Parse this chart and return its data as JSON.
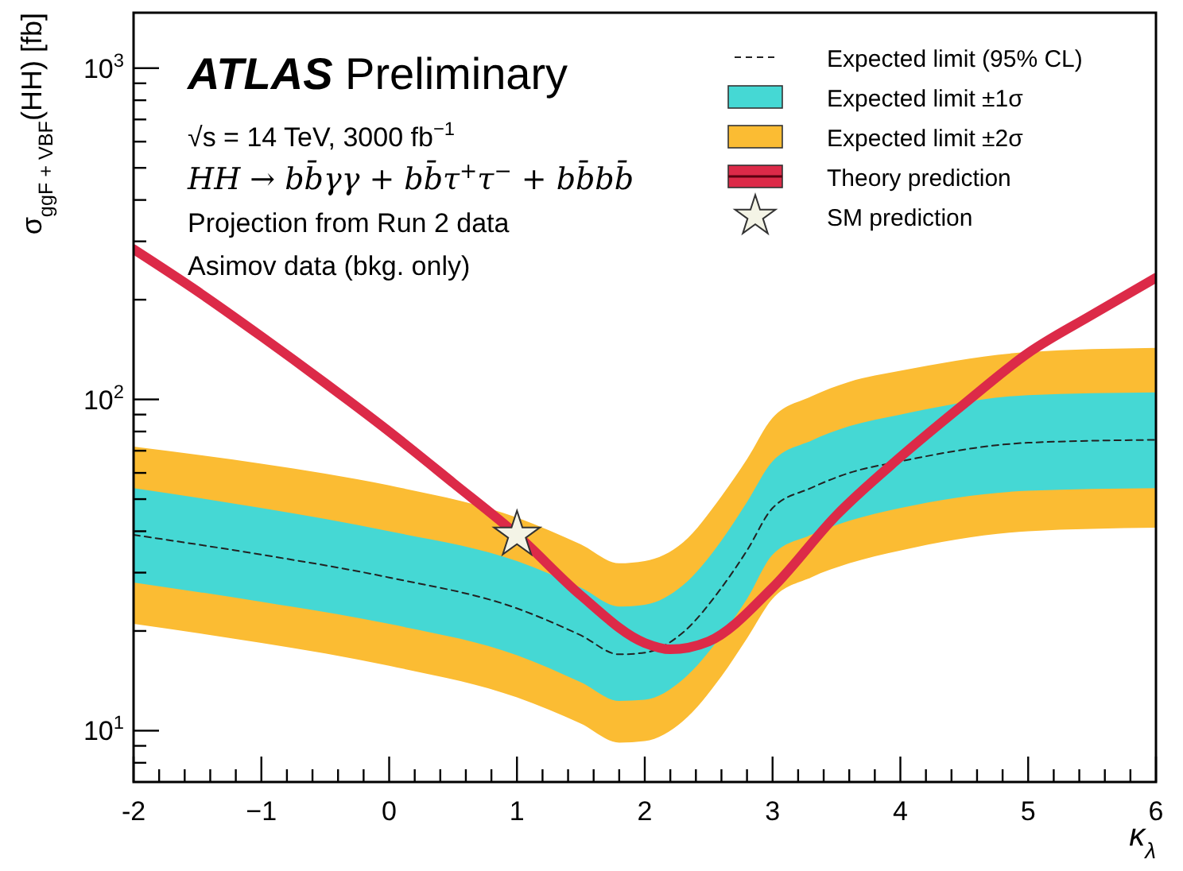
{
  "chart_data": {
    "type": "line",
    "title": "ATLAS Preliminary",
    "xlabel": "κ$_{λ}$",
    "ylabel": "σ$_{ggF + VBF}$(HH) [fb]",
    "annotations": [
      "√s = 14 TeV, 3000 fb$^{−1}$",
      "HH → bb̄γγ + bb̄τ$^{+}$τ$^{−}$ + bb̄bb̄",
      "Projection from Run 2 data",
      "Asimov data (bkg. only)"
    ],
    "x": [
      -2,
      -1,
      0,
      1,
      1.5,
      1.8,
      2,
      2.3,
      2.6,
      2.8,
      3,
      3.3,
      3.6,
      4,
      5,
      6
    ],
    "series": [
      {
        "name": "Expected limit (95% CL)",
        "color": "#222222",
        "line_style": "dashed",
        "values": [
          39,
          34,
          29,
          23.4,
          19.4,
          17,
          17.2,
          19.8,
          27,
          35,
          47,
          54,
          60,
          65,
          74,
          75.5
        ]
      },
      {
        "name": "Expected limit ±1σ",
        "color": "#45d8d4",
        "values": [
          null,
          null,
          null,
          null,
          null,
          null,
          null,
          null,
          null,
          null,
          null,
          null,
          null,
          null,
          null,
          null
        ],
        "lower": [
          28,
          24.5,
          21,
          16.9,
          14,
          12.3,
          12.4,
          14.3,
          19.4,
          25,
          34,
          39,
          43,
          47,
          53,
          54
        ],
        "upper": [
          54,
          47,
          40,
          32.5,
          27,
          23.7,
          24,
          27.5,
          37.5,
          49,
          65,
          75,
          83,
          90,
          103,
          105
        ]
      },
      {
        "name": "Expected limit ±2σ",
        "color": "#fbbc33",
        "values": [
          null,
          null,
          null,
          null,
          null,
          null,
          null,
          null,
          null,
          null,
          null,
          null,
          null,
          null,
          null,
          null
        ],
        "lower": [
          21,
          18.4,
          15.7,
          12.6,
          10.5,
          9.2,
          9.3,
          10.7,
          14.6,
          19,
          25,
          29,
          32,
          35,
          40,
          41
        ],
        "upper": [
          72,
          64,
          55,
          44,
          36.5,
          32,
          32.5,
          37,
          51,
          66,
          88,
          102,
          113,
          122,
          139,
          143
        ]
      },
      {
        "name": "Theory prediction",
        "color": "#dc2a48",
        "line_style": "solid",
        "x": [
          -2,
          -1.5,
          -1,
          -0.5,
          0,
          0.5,
          1,
          1.5,
          2,
          2.2,
          2.5,
          3,
          3.5,
          4,
          4.5,
          5,
          5.5,
          6
        ],
        "values": [
          284,
          212,
          155,
          112,
          80,
          56,
          39,
          25.6,
          18.4,
          17.6,
          18.6,
          27,
          44.7,
          67,
          97,
          138,
          180,
          233
        ]
      },
      {
        "name": "SM prediction",
        "type": "scatter",
        "color": "#f4f4e6",
        "marker": "star",
        "x": [
          1
        ],
        "values": [
          39
        ]
      }
    ],
    "xlim": [
      -2,
      6
    ],
    "xticks": [
      -2,
      {
        "value": -1.8,
        "label": null
      },
      {
        "value": -1.6,
        "label": null
      },
      {
        "value": -1.4,
        "label": null
      },
      {
        "value": -1.2,
        "label": null
      },
      {
        "value": -1,
        "label": "−1"
      },
      {
        "value": -0.8,
        "label": null
      },
      {
        "value": -0.6,
        "label": null
      },
      {
        "value": -0.4,
        "label": null
      },
      {
        "value": -0.2,
        "label": null
      },
      0,
      {
        "value": 0.2,
        "label": null
      },
      {
        "value": 0.4,
        "label": null
      },
      {
        "value": 0.6,
        "label": null
      },
      {
        "value": 0.8,
        "label": null
      },
      1,
      {
        "value": 1.2,
        "label": null
      },
      {
        "value": 1.4,
        "label": null
      },
      {
        "value": 1.6,
        "label": null
      },
      {
        "value": 1.8,
        "label": null
      },
      2,
      {
        "value": 2.2,
        "label": null
      },
      {
        "value": 2.4,
        "label": null
      },
      {
        "value": 2.6,
        "label": null
      },
      {
        "value": 2.8,
        "label": null
      },
      3,
      {
        "value": 3.2,
        "label": null
      },
      {
        "value": 3.4,
        "label": null
      },
      {
        "value": 3.6,
        "label": null
      },
      {
        "value": 3.8,
        "label": null
      },
      4,
      {
        "value": 4.2,
        "label": null
      },
      {
        "value": 4.4,
        "label": null
      },
      {
        "value": 4.6,
        "label": null
      },
      {
        "value": 4.8,
        "label": null
      },
      5,
      {
        "value": 5.2,
        "label": null
      },
      {
        "value": 5.4,
        "label": null
      },
      {
        "value": 5.6,
        "label": null
      },
      {
        "value": 5.8,
        "label": null
      },
      6
    ],
    "ylim": [
      7,
      1470
    ],
    "log": true,
    "yticks": [
      {
        "value": 8,
        "label": null
      },
      {
        "value": 9,
        "label": null
      },
      {
        "value": 10,
        "label": "10$^{1}$"
      },
      {
        "value": 20,
        "label": null
      },
      {
        "value": 30,
        "label": null
      },
      {
        "value": 40,
        "label": null
      },
      {
        "value": 50,
        "label": null
      },
      {
        "value": 60,
        "label": null
      },
      {
        "value": 70,
        "label": null
      },
      {
        "value": 80,
        "label": null
      },
      {
        "value": 90,
        "label": null
      },
      {
        "value": 100,
        "label": "10$^{2}$"
      },
      {
        "value": 200,
        "label": null
      },
      {
        "value": 300,
        "label": null
      },
      {
        "value": 400,
        "label": null
      },
      {
        "value": 500,
        "label": null
      },
      {
        "value": 600,
        "label": null
      },
      {
        "value": 700,
        "label": null
      },
      {
        "value": 800,
        "label": null
      },
      {
        "value": 900,
        "label": null
      },
      {
        "value": 1000,
        "label": "10$^{3}$"
      }
    ],
    "grid": false,
    "legend": "top right"
  }
}
